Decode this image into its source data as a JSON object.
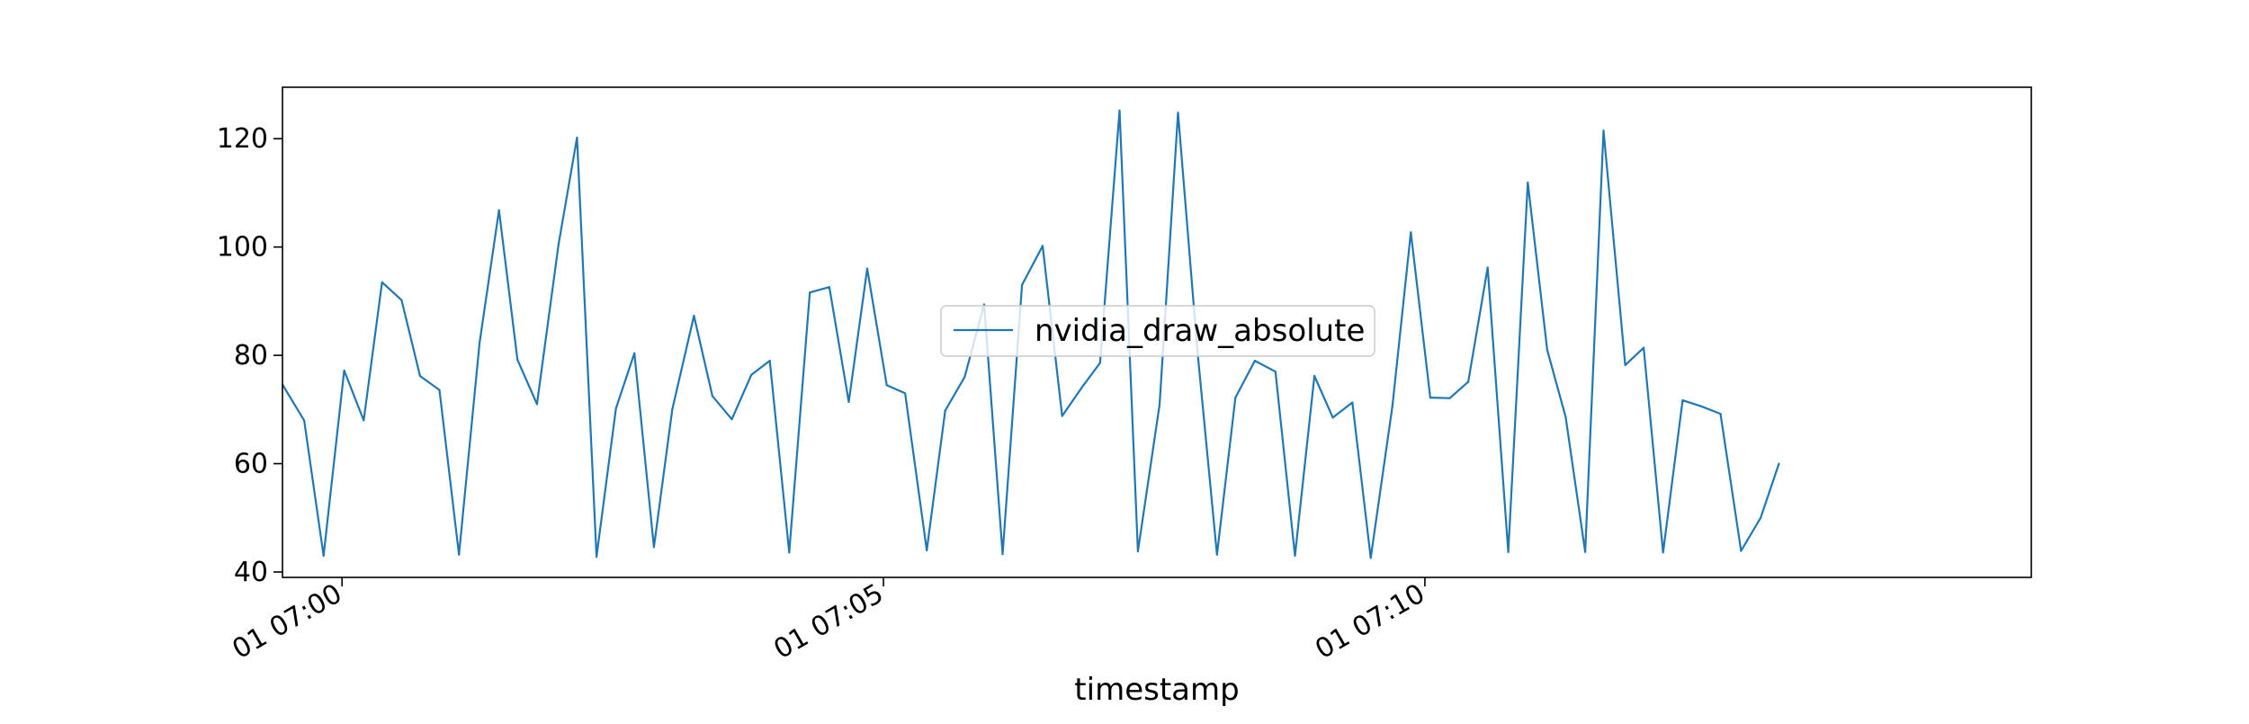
{
  "chart_data": {
    "type": "line",
    "title": "",
    "xlabel": "timestamp",
    "ylabel": "",
    "ylim": [
      39,
      129.5
    ],
    "yticks": [
      40,
      60,
      80,
      100,
      120
    ],
    "ytick_labels": [
      "40",
      "60",
      "80",
      "100",
      "120"
    ],
    "xlim_minutes": [
      -0.55,
      15.6
    ],
    "xticks_minutes": [
      0,
      5,
      10
    ],
    "xtick_labels": [
      "01 07:00",
      "01 07:05",
      "01 07:10"
    ],
    "grid": false,
    "legend_position": "center",
    "series": [
      {
        "name": "nvidia_draw_absolute",
        "color": "#1f77b4",
        "x_minutes": [
          -0.55,
          -0.35,
          -0.17,
          0.02,
          0.2,
          0.37,
          0.55,
          0.72,
          0.9,
          1.08,
          1.27,
          1.45,
          1.62,
          1.8,
          2.0,
          2.17,
          2.35,
          2.53,
          2.7,
          2.88,
          3.05,
          3.25,
          3.42,
          3.6,
          3.78,
          3.95,
          4.13,
          4.32,
          4.5,
          4.68,
          4.85,
          5.03,
          5.2,
          5.4,
          5.57,
          5.75,
          5.93,
          6.1,
          6.28,
          6.47,
          6.65,
          6.83,
          7.0,
          7.18,
          7.35,
          7.55,
          7.72,
          7.9,
          8.08,
          8.25,
          8.43,
          8.62,
          8.8,
          8.98,
          9.15,
          9.33,
          9.5,
          9.7,
          9.87,
          10.05,
          10.23,
          10.4,
          10.58,
          10.77,
          10.95,
          11.13,
          11.3,
          11.48,
          11.65,
          11.85,
          12.02,
          12.2,
          12.38,
          12.55,
          12.73,
          12.92,
          13.1,
          13.27
        ],
        "values": [
          74.6,
          68.0,
          43.0,
          77.2,
          68.0,
          93.5,
          90.2,
          76.2,
          73.6,
          43.2,
          82.3,
          106.8,
          79.2,
          71.0,
          100.5,
          120.2,
          42.8,
          70.2,
          80.4,
          44.6,
          70.0,
          87.3,
          72.5,
          68.2,
          76.4,
          79.0,
          43.6,
          91.6,
          92.6,
          71.4,
          96.0,
          74.5,
          73.0,
          44.0,
          69.8,
          76.0,
          89.4,
          43.3,
          93.0,
          100.2,
          68.8,
          74.0,
          78.6,
          125.2,
          43.8,
          70.9,
          124.8,
          80.8,
          43.2,
          72.2,
          79.0,
          77.0,
          43.0,
          76.2,
          68.5,
          71.3,
          42.6,
          70.6,
          102.7,
          72.2,
          72.1,
          75.1,
          96.2,
          43.7,
          111.9,
          81.0,
          68.6,
          43.7,
          121.5,
          78.2,
          81.4,
          43.6,
          71.7,
          70.6,
          69.2,
          43.9,
          50.0,
          60.0
        ]
      }
    ]
  }
}
